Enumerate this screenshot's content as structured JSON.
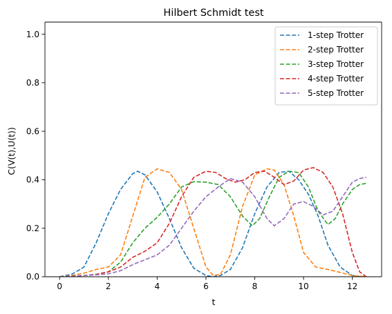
{
  "chart_data": {
    "type": "line",
    "title": "Hilbert Schmidt test",
    "xlabel": "t",
    "ylabel": "C(V(t),U(t))",
    "xlim": [
      -0.6,
      13.2
    ],
    "ylim": [
      0,
      1.05
    ],
    "xticks": [
      0,
      2,
      4,
      6,
      8,
      10,
      12
    ],
    "yticks": [
      0.0,
      0.2,
      0.4,
      0.6,
      0.8,
      1.0
    ],
    "xtick_labels": [
      "0",
      "2",
      "4",
      "6",
      "8",
      "10",
      "12"
    ],
    "ytick_labels": [
      "0.0",
      "0.2",
      "0.4",
      "0.6",
      "0.8",
      "1.0"
    ],
    "grid": false,
    "legend_position": "top-right",
    "line_style": "dashed",
    "series": [
      {
        "name": "1-step Trotter",
        "color": "#1f77b4",
        "x": [
          0,
          0.5,
          1.0,
          1.5,
          2.0,
          2.5,
          3.0,
          3.2,
          3.5,
          4.0,
          4.5,
          5.0,
          5.5,
          6.0,
          6.3,
          6.6,
          7.0,
          7.5,
          8.0,
          8.5,
          9.0,
          9.4,
          9.8,
          10.2,
          10.6,
          11.0,
          11.5,
          12.0,
          12.3,
          12.57
        ],
        "y": [
          0,
          0.01,
          0.04,
          0.14,
          0.26,
          0.36,
          0.425,
          0.435,
          0.42,
          0.35,
          0.24,
          0.12,
          0.035,
          0.005,
          0.0,
          0.005,
          0.03,
          0.12,
          0.26,
          0.37,
          0.43,
          0.435,
          0.4,
          0.34,
          0.25,
          0.13,
          0.04,
          0.005,
          0.001,
          0.0
        ]
      },
      {
        "name": "2-step Trotter",
        "color": "#ff7f0e",
        "x": [
          0,
          0.5,
          1.0,
          1.5,
          2.0,
          2.5,
          3.0,
          3.5,
          4.0,
          4.5,
          5.0,
          5.5,
          6.0,
          6.3,
          6.6,
          7.0,
          7.5,
          8.0,
          8.5,
          8.8,
          9.2,
          9.6,
          10.0,
          10.5,
          11.0,
          11.5,
          12.0,
          12.57
        ],
        "y": [
          0,
          0.005,
          0.015,
          0.03,
          0.04,
          0.09,
          0.25,
          0.41,
          0.445,
          0.43,
          0.36,
          0.2,
          0.04,
          0.005,
          0.01,
          0.09,
          0.29,
          0.42,
          0.445,
          0.44,
          0.38,
          0.25,
          0.1,
          0.04,
          0.03,
          0.018,
          0.005,
          0.0
        ]
      },
      {
        "name": "3-step Trotter",
        "color": "#2ca02c",
        "x": [
          0,
          0.5,
          1.0,
          1.5,
          2.0,
          2.5,
          3.0,
          3.5,
          4.0,
          4.5,
          5.0,
          5.5,
          6.0,
          6.5,
          7.0,
          7.5,
          7.9,
          8.2,
          8.6,
          9.0,
          9.4,
          9.8,
          10.2,
          10.6,
          11.0,
          11.3,
          11.6,
          12.0,
          12.3,
          12.57
        ],
        "y": [
          0,
          0.002,
          0.005,
          0.01,
          0.02,
          0.06,
          0.14,
          0.2,
          0.245,
          0.3,
          0.37,
          0.392,
          0.39,
          0.38,
          0.33,
          0.25,
          0.21,
          0.24,
          0.33,
          0.41,
          0.435,
          0.43,
          0.37,
          0.27,
          0.215,
          0.24,
          0.3,
          0.36,
          0.38,
          0.385
        ]
      },
      {
        "name": "4-step Trotter",
        "color": "#d62728",
        "x": [
          0,
          0.5,
          1.0,
          1.5,
          2.0,
          2.5,
          3.0,
          3.5,
          4.0,
          4.5,
          5.0,
          5.5,
          6.0,
          6.4,
          6.8,
          7.2,
          7.6,
          8.0,
          8.4,
          8.8,
          9.2,
          9.6,
          10.0,
          10.4,
          10.8,
          11.2,
          11.6,
          12.0,
          12.3,
          12.57
        ],
        "y": [
          0,
          0.002,
          0.005,
          0.01,
          0.02,
          0.04,
          0.08,
          0.105,
          0.14,
          0.22,
          0.33,
          0.41,
          0.435,
          0.43,
          0.405,
          0.39,
          0.4,
          0.43,
          0.435,
          0.41,
          0.38,
          0.395,
          0.44,
          0.45,
          0.43,
          0.37,
          0.26,
          0.1,
          0.02,
          0.0
        ]
      },
      {
        "name": "5-step Trotter",
        "color": "#9467bd",
        "x": [
          0,
          0.5,
          1.0,
          1.5,
          2.0,
          2.5,
          3.0,
          3.5,
          4.0,
          4.5,
          5.0,
          5.5,
          6.0,
          6.5,
          7.0,
          7.5,
          8.0,
          8.5,
          8.8,
          9.2,
          9.6,
          10.0,
          10.4,
          10.8,
          11.2,
          11.6,
          12.0,
          12.3,
          12.57
        ],
        "y": [
          0,
          0.002,
          0.005,
          0.008,
          0.012,
          0.025,
          0.05,
          0.07,
          0.09,
          0.13,
          0.2,
          0.27,
          0.33,
          0.37,
          0.405,
          0.39,
          0.33,
          0.24,
          0.21,
          0.24,
          0.3,
          0.31,
          0.29,
          0.255,
          0.27,
          0.33,
          0.39,
          0.405,
          0.41
        ]
      }
    ]
  }
}
